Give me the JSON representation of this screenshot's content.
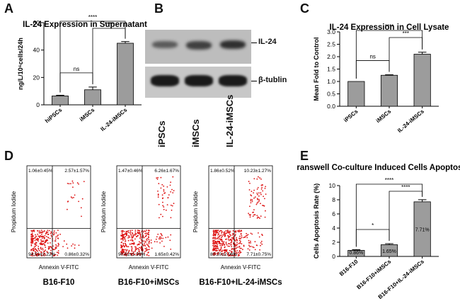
{
  "panels": {
    "A": "A",
    "B": "B",
    "C": "C",
    "D": "D",
    "E": "E"
  },
  "chart_data": [
    {
      "panel": "A",
      "type": "bar",
      "title": "IL-24 Expression in Supernatant",
      "ylabel": "ng/L/10⁶cells/24h",
      "categories": [
        "hiPSCs",
        "iMSCs",
        "IL-24-iMSCs"
      ],
      "values": [
        6.5,
        11,
        45
      ],
      "errors": [
        0.5,
        2,
        1.2
      ],
      "ylim": [
        0,
        60
      ],
      "yticks": [
        0,
        20,
        40,
        60
      ],
      "significance": [
        {
          "from": 0,
          "to": 1,
          "label": "ns"
        },
        {
          "from": 1,
          "to": 2,
          "label": "****"
        },
        {
          "from": 0,
          "to": 2,
          "label": "****"
        }
      ]
    },
    {
      "panel": "C",
      "type": "bar",
      "title": "IL-24 Expression in Cell Lysate",
      "ylabel": "Mean Fold to Control",
      "categories": [
        "iPSCs",
        "iMSCs",
        "IL-24-iMSCs"
      ],
      "values": [
        1.0,
        1.25,
        2.1
      ],
      "errors": [
        0,
        0.02,
        0.08
      ],
      "ylim": [
        0,
        3
      ],
      "yticks": [
        0,
        0.5,
        1,
        1.5,
        2,
        2.5,
        3
      ],
      "ytick_labels": [
        "0.0",
        "0.5",
        "1.0",
        "1.5",
        "2.0",
        "2.5",
        "3.0"
      ],
      "significance": [
        {
          "from": 0,
          "to": 1,
          "label": "ns"
        },
        {
          "from": 1,
          "to": 2,
          "label": "***"
        },
        {
          "from": 0,
          "to": 2,
          "label": "****"
        }
      ]
    },
    {
      "panel": "E",
      "type": "bar",
      "title": "Transwell Co-culture Induced Cells Apoptosis",
      "ylabel": "Cells Apoptosis Rate (%)",
      "categories": [
        "B16-F10",
        "B16-F10+iMSCs",
        "B16-F10+IL-24-iMSCs"
      ],
      "values": [
        0.86,
        1.65,
        7.71
      ],
      "value_labels": [
        "0.86%",
        "1.65%",
        "7.71%"
      ],
      "errors": [
        0.1,
        0.15,
        0.3
      ],
      "ylim": [
        0,
        10
      ],
      "yticks": [
        0,
        2,
        4,
        6,
        8,
        10
      ],
      "significance": [
        {
          "from": 0,
          "to": 1,
          "label": "*"
        },
        {
          "from": 1,
          "to": 2,
          "label": "****"
        },
        {
          "from": 0,
          "to": 2,
          "label": "****"
        }
      ]
    }
  ],
  "blot": {
    "bands": [
      "IL-24",
      "β-tublin"
    ],
    "lanes": [
      "iPSCs",
      "iMSCs",
      "IL-24-iMSCs"
    ]
  },
  "flow": {
    "xlabel": "Annexin V-FITC",
    "ylabel": "Propidum Iodide",
    "plots": [
      {
        "caption": "B16-F10",
        "ul": "1.06±0.45%",
        "ur": "2.57±1.57%",
        "ll": "94.51±2.22%",
        "lr": "0.86±0.32%"
      },
      {
        "caption": "B16-F10+iMSCs",
        "ul": "1.47±0.46%",
        "ur": "6.26±1.67%",
        "ll": "90.62±1.99%",
        "lr": "1.65±0.42%"
      },
      {
        "caption": "B16-F10+IL-24-iMSCs",
        "ul": "1.86±0.52%",
        "ur": "10.23±1.27%",
        "ll": "80.20±2.06%",
        "lr": "7.71±0.75%"
      }
    ]
  }
}
